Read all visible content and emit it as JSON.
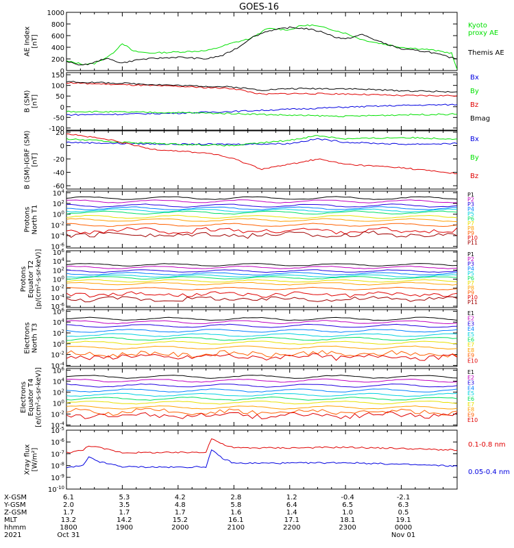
{
  "title": "GOES-16",
  "colors": {
    "black": "#000000",
    "red": "#e00000",
    "green": "#00e000",
    "blue": "#0000e0",
    "prot": [
      "#000000",
      "#c000c0",
      "#2000e0",
      "#0080ff",
      "#00d0e0",
      "#00e060",
      "#e8e000",
      "#ffa000",
      "#ff6000",
      "#e00000",
      "#a00000"
    ],
    "elec": [
      "#000000",
      "#c000c0",
      "#2000e0",
      "#0080ff",
      "#00d0e0",
      "#00e060",
      "#e8e000",
      "#ffa000",
      "#ff6000",
      "#e00000"
    ]
  },
  "chart_data": [
    {
      "id": "ae",
      "type": "line",
      "ylabel": [
        "AE Index",
        "[nT]"
      ],
      "ylim": [
        0,
        1000
      ],
      "yticks": [
        0,
        200,
        400,
        600,
        800,
        1000
      ],
      "ytick_labels": [
        "0",
        "200",
        "400",
        "600",
        "800",
        "1000"
      ],
      "series": [
        {
          "name": "Kyoto proxy AE",
          "label_lines": [
            "Kyoto",
            "proxy AE"
          ],
          "color": "green",
          "points": [
            [
              0,
              160
            ],
            [
              0.3,
              110
            ],
            [
              0.5,
              120
            ],
            [
              0.8,
              270
            ],
            [
              1,
              470
            ],
            [
              1.2,
              330
            ],
            [
              1.5,
              300
            ],
            [
              2,
              320
            ],
            [
              2.5,
              340
            ],
            [
              2.6,
              360
            ],
            [
              3,
              480
            ],
            [
              3.3,
              550
            ],
            [
              3.6,
              720
            ],
            [
              4,
              700
            ],
            [
              4.2,
              770
            ],
            [
              4.4,
              780
            ],
            [
              4.7,
              720
            ],
            [
              5,
              640
            ],
            [
              5.3,
              530
            ],
            [
              5.6,
              470
            ],
            [
              6,
              400
            ],
            [
              6.5,
              360
            ],
            [
              6.9,
              300
            ],
            [
              7,
              20
            ]
          ]
        },
        {
          "name": "Themis AE",
          "label_lines": [
            "Themis AE"
          ],
          "color": "black",
          "points": [
            [
              0,
              150
            ],
            [
              0.3,
              90
            ],
            [
              0.5,
              140
            ],
            [
              0.7,
              210
            ],
            [
              1,
              130
            ],
            [
              1.3,
              190
            ],
            [
              1.6,
              210
            ],
            [
              2,
              230
            ],
            [
              2.5,
              200
            ],
            [
              2.8,
              260
            ],
            [
              3.1,
              410
            ],
            [
              3.3,
              560
            ],
            [
              3.6,
              680
            ],
            [
              4,
              740
            ],
            [
              4.3,
              720
            ],
            [
              4.6,
              660
            ],
            [
              4.8,
              580
            ],
            [
              5,
              540
            ],
            [
              5.3,
              620
            ],
            [
              5.6,
              500
            ],
            [
              6,
              370
            ],
            [
              6.5,
              320
            ],
            [
              6.9,
              220
            ],
            [
              7,
              200
            ]
          ]
        }
      ]
    },
    {
      "id": "bsm",
      "type": "line",
      "ylabel": [
        "B (SM)",
        "[nT]"
      ],
      "ylim": [
        -110,
        160
      ],
      "yticks": [
        -100,
        -50,
        0,
        50,
        100,
        150
      ],
      "ytick_labels": [
        "-100",
        "-50",
        "0",
        "50",
        "100",
        "150"
      ],
      "series": [
        {
          "name": "Bx",
          "color": "blue",
          "points": [
            [
              0,
              -38
            ],
            [
              1,
              -35
            ],
            [
              2,
              -30
            ],
            [
              3,
              -22
            ],
            [
              4,
              -12
            ],
            [
              5,
              -2
            ],
            [
              6,
              6
            ],
            [
              7,
              10
            ]
          ]
        },
        {
          "name": "By",
          "color": "green",
          "points": [
            [
              0,
              -22
            ],
            [
              1,
              -25
            ],
            [
              2,
              -28
            ],
            [
              3,
              -32
            ],
            [
              4,
              -40
            ],
            [
              5,
              -45
            ],
            [
              6,
              -38
            ],
            [
              7,
              -35
            ]
          ]
        },
        {
          "name": "Bz",
          "color": "red",
          "points": [
            [
              0,
              112
            ],
            [
              1,
              103
            ],
            [
              2,
              95
            ],
            [
              3,
              85
            ],
            [
              3.5,
              58
            ],
            [
              4,
              62
            ],
            [
              5,
              60
            ],
            [
              6,
              52
            ],
            [
              7,
              52
            ]
          ]
        },
        {
          "name": "Bmag",
          "color": "black",
          "points": [
            [
              0,
              117
            ],
            [
              1,
              110
            ],
            [
              2,
              100
            ],
            [
              3,
              92
            ],
            [
              3.5,
              78
            ],
            [
              4,
              85
            ],
            [
              5,
              85
            ],
            [
              6,
              75
            ],
            [
              7,
              70
            ]
          ]
        }
      ]
    },
    {
      "id": "igrf",
      "type": "line",
      "ylabel": [
        "B (SM)-IGRF (SM)",
        "[nT]"
      ],
      "ylim": [
        -65,
        22
      ],
      "yticks": [
        -60,
        -40,
        -20,
        0,
        20
      ],
      "ytick_labels": [
        "-60",
        "-40",
        "-20",
        "0",
        "20"
      ],
      "series": [
        {
          "name": "Bx",
          "color": "blue",
          "points": [
            [
              0,
              5
            ],
            [
              1,
              3
            ],
            [
              2,
              2
            ],
            [
              3,
              2
            ],
            [
              4,
              3
            ],
            [
              4.5,
              10
            ],
            [
              5,
              5
            ],
            [
              6,
              2
            ],
            [
              7,
              3
            ]
          ]
        },
        {
          "name": "By",
          "color": "green",
          "points": [
            [
              0,
              10
            ],
            [
              1,
              5
            ],
            [
              2,
              2
            ],
            [
              3,
              0
            ],
            [
              4,
              8
            ],
            [
              4.5,
              15
            ],
            [
              5,
              10
            ],
            [
              6,
              12
            ],
            [
              7,
              10
            ]
          ]
        },
        {
          "name": "Bz",
          "color": "red",
          "points": [
            [
              0,
              18
            ],
            [
              0.8,
              8
            ],
            [
              1.5,
              -5
            ],
            [
              2,
              -8
            ],
            [
              2.6,
              -12
            ],
            [
              3,
              -20
            ],
            [
              3.5,
              -35
            ],
            [
              4,
              -28
            ],
            [
              4.5,
              -20
            ],
            [
              5,
              -28
            ],
            [
              6,
              -33
            ],
            [
              7,
              -42
            ]
          ]
        }
      ]
    },
    {
      "id": "protN",
      "type": "line",
      "log": true,
      "ylabel": [
        "Protons",
        "North T1"
      ],
      "ylim": [
        -6.3,
        4.3
      ],
      "yticks": [
        4,
        2,
        0,
        -2,
        -4,
        -6
      ],
      "ytick_labels": [
        "10^4",
        "10^2",
        "10^0",
        "10^-2",
        "10^-4",
        "10^-6"
      ],
      "legend": [
        "P1",
        "P2",
        "P3",
        "P4",
        "P5",
        "P6",
        "P7",
        "P8",
        "P9",
        "P10",
        "P11"
      ],
      "levels": [
        3.0,
        2.4,
        1.6,
        1.1,
        0.7,
        0.3,
        -0.5,
        -1.1,
        -2.0,
        -3.1,
        -3.8
      ]
    },
    {
      "id": "protE",
      "type": "line",
      "log": true,
      "ylabel": [
        "Protons",
        "Equator T2",
        "[p/(cm²-s-sr-keV)]"
      ],
      "ylim": [
        -6.3,
        6.3
      ],
      "yticks": [
        6,
        4,
        2,
        0,
        -2,
        -4,
        -6
      ],
      "ytick_labels": [
        "10^6",
        "10^4",
        "10^2",
        "10^0",
        "10^-2",
        "10^-4",
        "10^-6"
      ],
      "legend": [
        "P1",
        "P2",
        "P3",
        "P4",
        "P5",
        "P6",
        "P7",
        "P8",
        "P9",
        "P10",
        "P11"
      ],
      "levels": [
        3.2,
        2.6,
        1.8,
        1.2,
        0.7,
        0.3,
        -0.4,
        -1.0,
        -2.1,
        -3.4,
        -4.4
      ]
    },
    {
      "id": "elecN",
      "type": "line",
      "log": true,
      "ylabel": [
        "Electrons",
        "North T3"
      ],
      "ylim": [
        -4.2,
        6.3
      ],
      "yticks": [
        6,
        4,
        2,
        0,
        -2,
        -4
      ],
      "ytick_labels": [
        "10^6",
        "10^4",
        "10^2",
        "10^0",
        "10^-2",
        "10^-4"
      ],
      "legend": [
        "E1",
        "E2",
        "E3",
        "E4",
        "E5",
        "E6",
        "E7",
        "E8",
        "E9",
        "E10"
      ],
      "levels": [
        4.6,
        4.0,
        3.3,
        2.4,
        1.6,
        0.9,
        0.2,
        -0.7,
        -1.9,
        -2.4
      ]
    },
    {
      "id": "elecE",
      "type": "line",
      "log": true,
      "ylabel": [
        "Electrons",
        "Equator T4",
        "[e/(cm²-s-sr-keV)]"
      ],
      "ylim": [
        -4.2,
        6.3
      ],
      "yticks": [
        6,
        4,
        2,
        0,
        -2,
        -4
      ],
      "ytick_labels": [
        "10^6",
        "10^4",
        "10^2",
        "10^0",
        "10^-2",
        "10^-4"
      ],
      "legend": [
        "E1",
        "E2",
        "E3",
        "E4",
        "E5",
        "E6",
        "E7",
        "E8",
        "E9",
        "E10"
      ],
      "levels": [
        4.8,
        4.1,
        3.2,
        2.3,
        1.5,
        0.8,
        0.1,
        -0.8,
        -1.6,
        -2.2
      ]
    },
    {
      "id": "xray",
      "type": "line",
      "log": true,
      "ylabel": [
        "Xray flux",
        "[W/m²]"
      ],
      "ylim": [
        -10,
        -5
      ],
      "yticks": [
        -5,
        -6,
        -7,
        -8,
        -9,
        -10
      ],
      "ytick_labels": [
        "10^-5",
        "10^-6",
        "10^-7",
        "10^-8",
        "10^-9",
        "10^-10"
      ],
      "series": [
        {
          "name": "0.1-0.8 nm",
          "color": "red",
          "points": [
            [
              0,
              -6.9
            ],
            [
              0.3,
              -6.7
            ],
            [
              0.4,
              -6.3
            ],
            [
              0.6,
              -6.5
            ],
            [
              1,
              -6.9
            ],
            [
              2,
              -6.9
            ],
            [
              2.5,
              -6.85
            ],
            [
              2.6,
              -5.7
            ],
            [
              2.8,
              -6.2
            ],
            [
              3,
              -6.5
            ],
            [
              4,
              -6.5
            ],
            [
              5,
              -6.45
            ],
            [
              6,
              -6.55
            ],
            [
              7,
              -6.7
            ]
          ]
        },
        {
          "name": "0.05-0.4 nm",
          "color": "blue",
          "points": [
            [
              0,
              -8.2
            ],
            [
              0.3,
              -8.0
            ],
            [
              0.4,
              -7.3
            ],
            [
              0.6,
              -7.7
            ],
            [
              1,
              -8.1
            ],
            [
              2,
              -8.15
            ],
            [
              2.5,
              -8.1
            ],
            [
              2.6,
              -6.7
            ],
            [
              2.8,
              -7.4
            ],
            [
              3,
              -7.8
            ],
            [
              4,
              -7.8
            ],
            [
              5,
              -7.75
            ],
            [
              6,
              -7.9
            ],
            [
              7,
              -8.05
            ]
          ]
        }
      ]
    }
  ],
  "x_axis": {
    "row_labels": [
      "X-GSM",
      "Y-GSM",
      "Z-GSM",
      "MLT",
      "hhmm",
      "2021"
    ],
    "columns": [
      [
        "6.1",
        "2.0",
        "1.7",
        "13.2",
        "1800",
        "Oct 31"
      ],
      [
        "5.3",
        "3.5",
        "1.7",
        "14.2",
        "1900",
        ""
      ],
      [
        "4.2",
        "4.8",
        "1.7",
        "15.2",
        "2000",
        ""
      ],
      [
        "2.8",
        "5.8",
        "1.6",
        "16.1",
        "2100",
        ""
      ],
      [
        "1.2",
        "6.4",
        "1.4",
        "17.1",
        "2200",
        ""
      ],
      [
        "-0.4",
        "6.5",
        "1.0",
        "18.1",
        "2300",
        ""
      ],
      [
        "-2.1",
        "6.3",
        "0.5",
        "19.1",
        "0000",
        "Nov 01"
      ]
    ]
  }
}
